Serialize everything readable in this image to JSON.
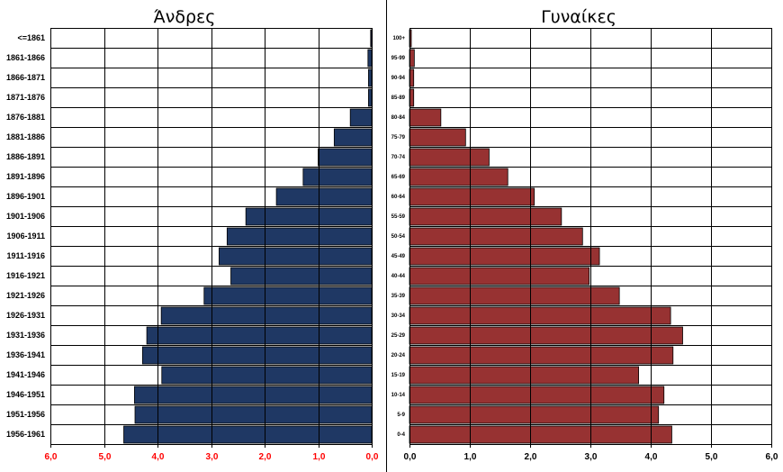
{
  "chart_data": [
    {
      "type": "bar",
      "orientation": "horizontal",
      "direction": "right-to-left",
      "title": "Άνδρες",
      "categories": [
        "<=1861",
        "1861-1866",
        "1866-1871",
        "1871-1876",
        "1876-1881",
        "1881-1886",
        "1886-1891",
        "1891-1896",
        "1896-1901",
        "1901-1906",
        "1906-1911",
        "1911-1916",
        "1916-1921",
        "1921-1926",
        "1926-1931",
        "1931-1936",
        "1936-1941",
        "1941-1946",
        "1946-1951",
        "1951-1956",
        "1956-1961"
      ],
      "values": [
        0.02,
        0.07,
        0.06,
        0.06,
        0.4,
        0.7,
        1.0,
        1.28,
        1.78,
        2.35,
        2.7,
        2.85,
        2.63,
        3.13,
        3.93,
        4.2,
        4.28,
        3.92,
        4.43,
        4.42,
        4.63
      ],
      "xlim": [
        6.0,
        0.0
      ],
      "xticks": [
        "6,0",
        "5,0",
        "4,0",
        "3,0",
        "2,0",
        "1,0",
        "0,0"
      ],
      "grid": true,
      "colors": {
        "bar": "#1f3864",
        "tick_label": "#ff0000"
      }
    },
    {
      "type": "bar",
      "orientation": "horizontal",
      "direction": "left-to-right",
      "title": "Γυναίκες",
      "categories": [
        "100+",
        "95-99",
        "90-94",
        "85-89",
        "80-84",
        "75-79",
        "70-74",
        "65-69",
        "60-64",
        "55-59",
        "50-54",
        "45-49",
        "40-44",
        "35-39",
        "30-34",
        "25-29",
        "20-24",
        "15-19",
        "10-14",
        "5-9",
        "0-4"
      ],
      "values": [
        0.03,
        0.08,
        0.07,
        0.07,
        0.52,
        0.93,
        1.32,
        1.63,
        2.07,
        2.52,
        2.87,
        3.15,
        2.98,
        3.48,
        4.33,
        4.53,
        4.37,
        3.8,
        4.22,
        4.13,
        4.35
      ],
      "xlim": [
        0.0,
        6.0
      ],
      "xticks": [
        "0,0",
        "1,0",
        "2,0",
        "3,0",
        "4,0",
        "5,0",
        "6,0"
      ],
      "grid": true,
      "colors": {
        "bar": "#973232",
        "tick_label": "#000000"
      }
    }
  ]
}
